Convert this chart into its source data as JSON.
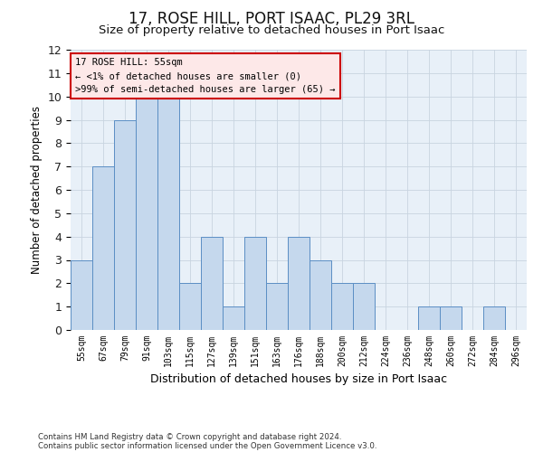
{
  "title": "17, ROSE HILL, PORT ISAAC, PL29 3RL",
  "subtitle": "Size of property relative to detached houses in Port Isaac",
  "xlabel": "Distribution of detached houses by size in Port Isaac",
  "ylabel": "Number of detached properties",
  "footnote1": "Contains HM Land Registry data © Crown copyright and database right 2024.",
  "footnote2": "Contains public sector information licensed under the Open Government Licence v3.0.",
  "categories": [
    "55sqm",
    "67sqm",
    "79sqm",
    "91sqm",
    "103sqm",
    "115sqm",
    "127sqm",
    "139sqm",
    "151sqm",
    "163sqm",
    "176sqm",
    "188sqm",
    "200sqm",
    "212sqm",
    "224sqm",
    "236sqm",
    "248sqm",
    "260sqm",
    "272sqm",
    "284sqm",
    "296sqm"
  ],
  "values": [
    3,
    7,
    9,
    10,
    10,
    2,
    4,
    1,
    4,
    2,
    4,
    3,
    2,
    2,
    0,
    0,
    1,
    1,
    0,
    1,
    0
  ],
  "bar_color": "#c5d8ed",
  "bar_edge_color": "#5b8ec4",
  "annotation_line1": "17 ROSE HILL: 55sqm",
  "annotation_line2": "← <1% of detached houses are smaller (0)",
  "annotation_line3": ">99% of semi-detached houses are larger (65) →",
  "annotation_box_facecolor": "#fde8e8",
  "annotation_box_edgecolor": "#cc0000",
  "ylim": [
    0,
    12
  ],
  "yticks": [
    0,
    1,
    2,
    3,
    4,
    5,
    6,
    7,
    8,
    9,
    10,
    11,
    12
  ],
  "grid_color": "#c8d4e0",
  "ax_facecolor": "#e8f0f8",
  "background_color": "#ffffff",
  "fig_width": 6.0,
  "fig_height": 5.0,
  "dpi": 100
}
